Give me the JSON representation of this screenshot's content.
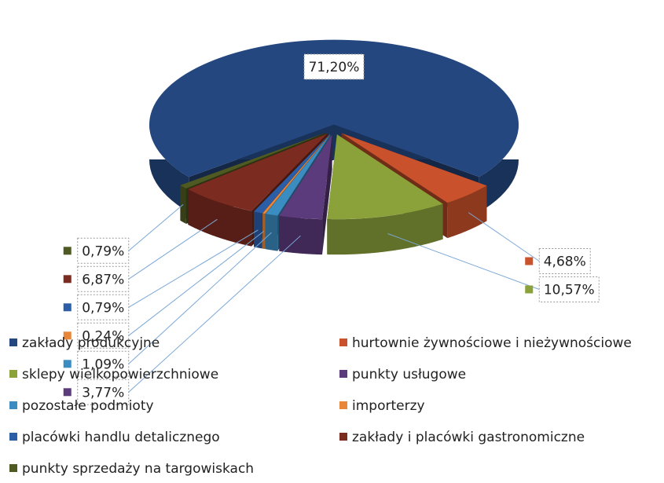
{
  "chart_data": {
    "type": "pie",
    "categories": [
      "zakłady produkcyjne",
      "hurtownie żywnościowe i nieżywnościowe",
      "sklepy wielkopowierzchniowe",
      "punkty usługowe",
      "pozostałe podmioty",
      "importerzy",
      "placówki handlu detalicznego",
      "zakłady i placówki gastronomiczne",
      "punkty sprzedaży na targowiskach"
    ],
    "values": [
      71.2,
      4.68,
      10.57,
      3.77,
      1.09,
      0.24,
      0.79,
      6.87,
      0.79
    ],
    "value_labels": [
      "71,20%",
      "4,68%",
      "10,57%",
      "3,77%",
      "1,09%",
      "0,24%",
      "0,79%",
      "6,87%",
      "0,79%"
    ],
    "colors": [
      "#24477f",
      "#c9512b",
      "#8ba23a",
      "#5c3b7c",
      "#3b8cc0",
      "#e8873a",
      "#2c5ea8",
      "#7b2b1f",
      "#4f5a22"
    ],
    "legend": "bottom"
  }
}
